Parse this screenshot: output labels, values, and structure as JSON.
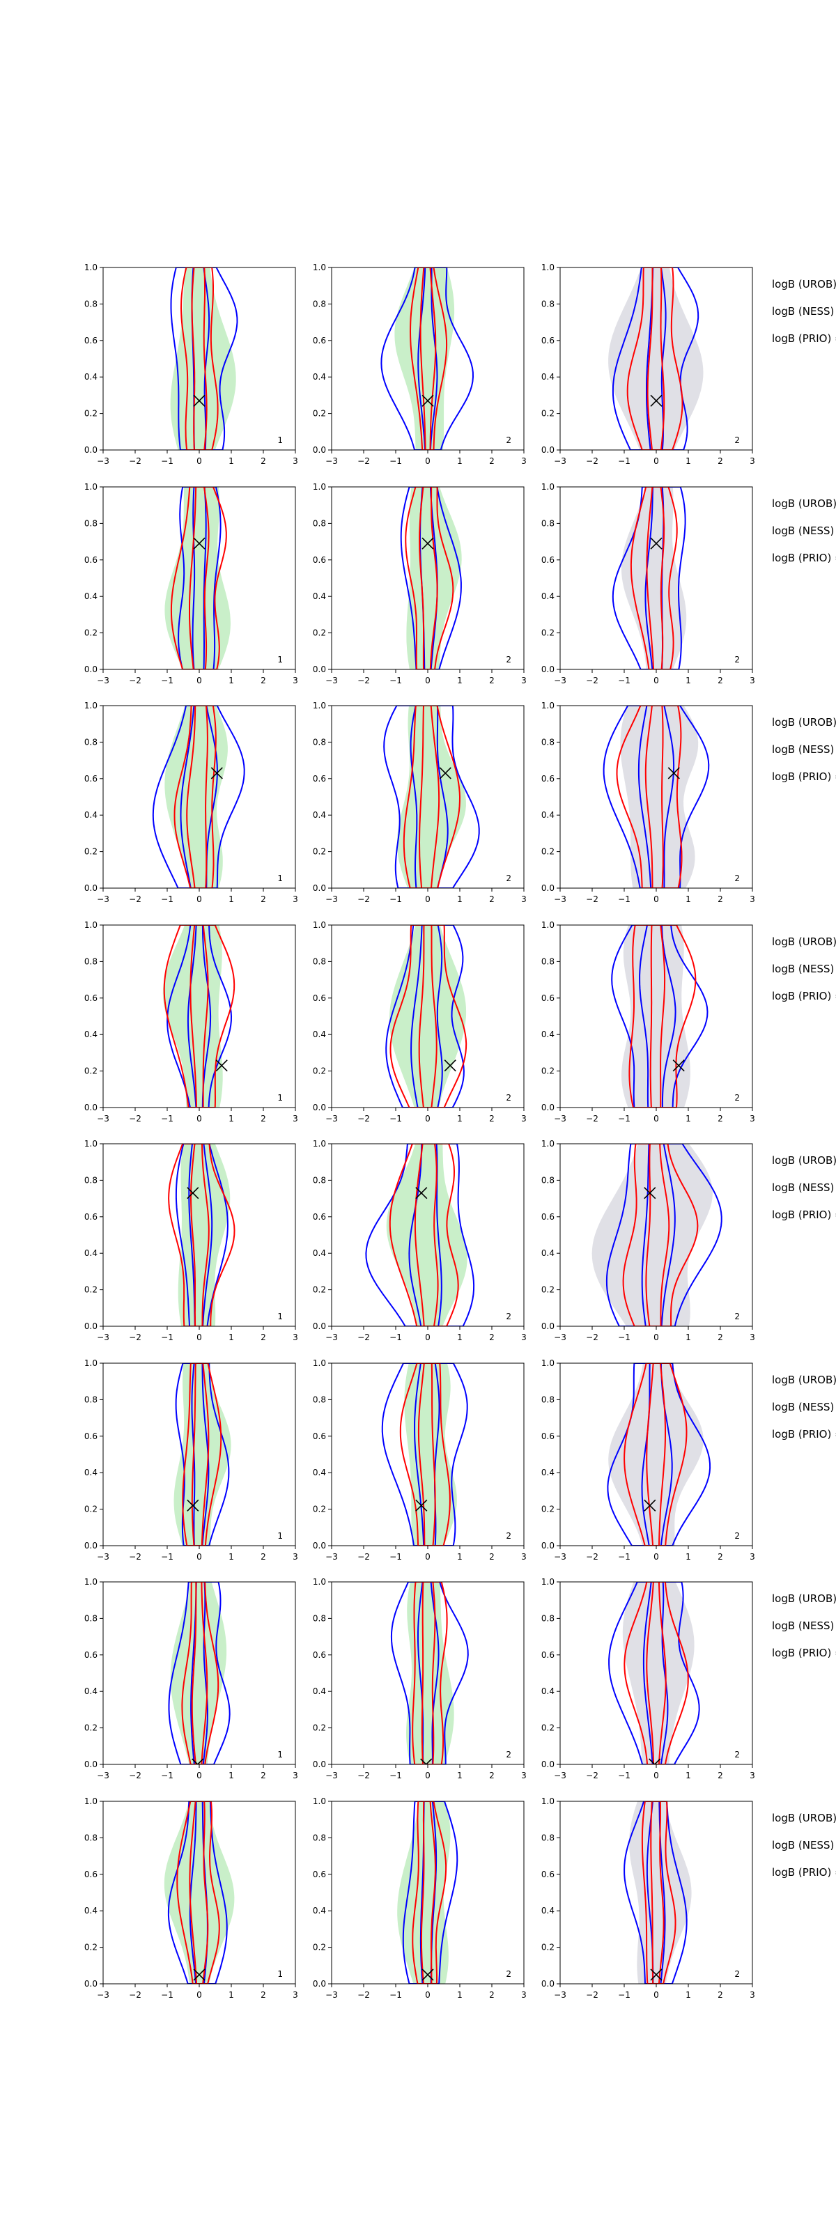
{
  "figure": {
    "row_labels": [
      "logB (UROB) =",
      "logB (NESS) =",
      "logB (PRIO) ="
    ]
  },
  "chart_data": {
    "type": "contour",
    "rows": 8,
    "cols": 3,
    "xlim": [
      -3,
      3
    ],
    "ylim": [
      0,
      1
    ],
    "xticks": [
      "−3",
      "−2",
      "−1",
      "0",
      "1",
      "2",
      "3"
    ],
    "yticks": [
      "0.0",
      "0.2",
      "0.4",
      "0.6",
      "0.8",
      "1.0"
    ],
    "column_fill_colors": [
      "#c9efc9",
      "#c9efc9",
      "#e0e0e6"
    ],
    "contour_colors": {
      "inner_band": "#ff0000",
      "outer_band": "#0000ff",
      "marker": "#000000"
    },
    "panel_numbers": [
      [
        "1",
        "2",
        "2"
      ],
      [
        "1",
        "2",
        "2"
      ],
      [
        "1",
        "2",
        "2"
      ],
      [
        "1",
        "2",
        "2"
      ],
      [
        "1",
        "2",
        "2"
      ],
      [
        "1",
        "2",
        "2"
      ],
      [
        "1",
        "2",
        "2"
      ],
      [
        "1",
        "2",
        "2"
      ]
    ],
    "markers": [
      {
        "x": 0.0,
        "y": 0.27
      },
      {
        "x": 0.0,
        "y": 0.69
      },
      {
        "x": 0.55,
        "y": 0.63
      },
      {
        "x": 0.7,
        "y": 0.23
      },
      {
        "x": -0.2,
        "y": 0.73
      },
      {
        "x": -0.2,
        "y": 0.22
      },
      {
        "x": -0.05,
        "y": 0.0
      },
      {
        "x": 0.0,
        "y": 0.05
      }
    ],
    "widths": [
      [
        {
          "fill": 1.2,
          "red": 0.75,
          "redin": 0.3,
          "blue": 1.35,
          "bluein": 0.35
        },
        {
          "fill": 1.1,
          "red": 0.6,
          "redin": 0.25,
          "blue": 1.45,
          "bluein": 0.3
        },
        {
          "fill": 1.5,
          "red": 1.0,
          "redin": 0.3,
          "blue": 1.55,
          "bluein": 0.35
        }
      ],
      [
        {
          "fill": 1.2,
          "red": 1.0,
          "redin": 0.35,
          "blue": 0.95,
          "bluein": 0.3
        },
        {
          "fill": 1.1,
          "red": 0.8,
          "redin": 0.3,
          "blue": 1.05,
          "bluein": 0.3
        },
        {
          "fill": 1.1,
          "red": 0.8,
          "redin": 0.3,
          "blue": 1.4,
          "bluein": 0.35
        }
      ],
      [
        {
          "fill": 1.1,
          "red": 0.8,
          "redin": 0.4,
          "blue": 1.5,
          "bluein": 0.6
        },
        {
          "fill": 1.2,
          "red": 1.0,
          "redin": 0.35,
          "blue": 1.8,
          "bluein": 0.7
        },
        {
          "fill": 1.7,
          "red": 1.3,
          "redin": 0.35,
          "blue": 1.8,
          "bluein": 0.6
        }
      ],
      [
        {
          "fill": 1.2,
          "red": 1.2,
          "redin": 0.3,
          "blue": 1.0,
          "bluein": 0.35
        },
        {
          "fill": 1.2,
          "red": 1.3,
          "redin": 0.3,
          "blue": 1.5,
          "bluein": 0.6
        },
        {
          "fill": 1.6,
          "red": 1.4,
          "redin": 0.3,
          "blue": 1.6,
          "bluein": 0.6
        }
      ],
      [
        {
          "fill": 1.1,
          "red": 1.1,
          "redin": 0.3,
          "blue": 0.9,
          "bluein": 0.4
        },
        {
          "fill": 1.3,
          "red": 1.2,
          "redin": 0.4,
          "blue": 2.0,
          "bluein": 0.6
        },
        {
          "fill": 2.1,
          "red": 1.3,
          "redin": 0.4,
          "blue": 2.1,
          "bluein": 0.6
        }
      ],
      [
        {
          "fill": 1.0,
          "red": 0.7,
          "redin": 0.3,
          "blue": 0.95,
          "bluein": 0.3
        },
        {
          "fill": 1.1,
          "red": 0.9,
          "redin": 0.3,
          "blue": 1.55,
          "bluein": 0.45
        },
        {
          "fill": 1.5,
          "red": 1.0,
          "redin": 0.3,
          "blue": 1.7,
          "bluein": 0.5
        }
      ],
      [
        {
          "fill": 0.9,
          "red": 0.6,
          "redin": 0.25,
          "blue": 1.1,
          "bluein": 0.3
        },
        {
          "fill": 1.0,
          "red": 0.8,
          "redin": 0.3,
          "blue": 1.3,
          "bluein": 0.35
        },
        {
          "fill": 1.3,
          "red": 1.0,
          "redin": 0.3,
          "blue": 1.5,
          "bluein": 0.4
        }
      ],
      [
        {
          "fill": 1.1,
          "red": 0.7,
          "redin": 0.3,
          "blue": 1.0,
          "bluein": 0.3
        },
        {
          "fill": 1.0,
          "red": 0.6,
          "redin": 0.25,
          "blue": 1.05,
          "bluein": 0.3
        },
        {
          "fill": 1.1,
          "red": 0.65,
          "redin": 0.25,
          "blue": 1.05,
          "bluein": 0.3
        }
      ]
    ]
  }
}
